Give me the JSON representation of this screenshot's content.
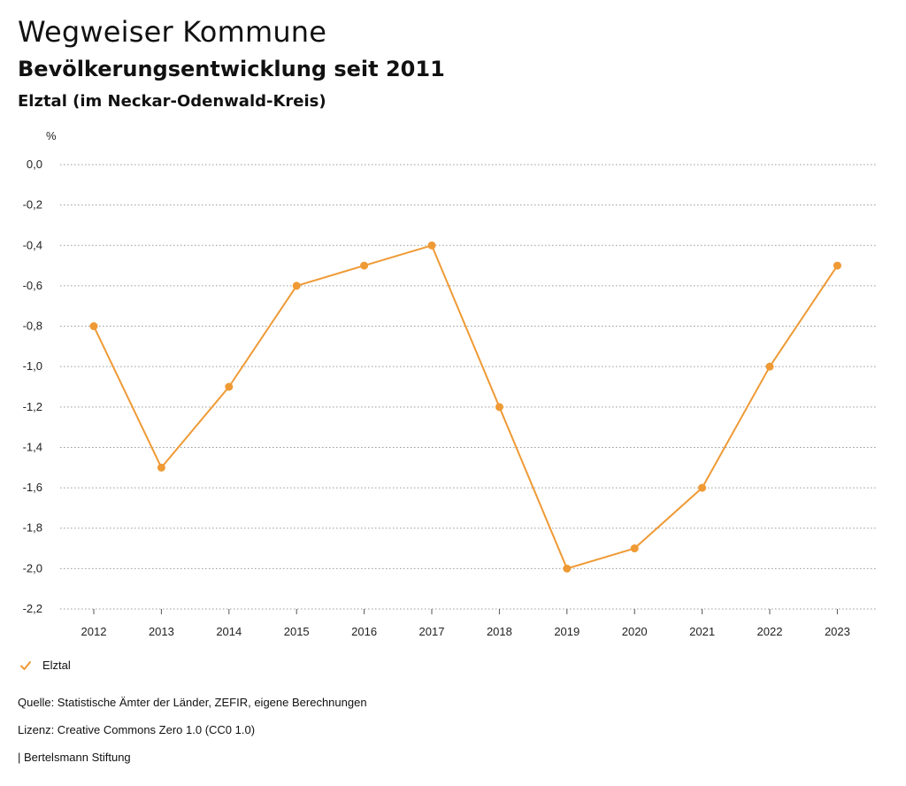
{
  "header": {
    "title": "Wegweiser Kommune",
    "subtitle": "Bevölkerungsentwicklung seit 2011",
    "region": "Elztal (im Neckar-Odenwald-Kreis)"
  },
  "chart_data": {
    "type": "line",
    "unit_label": "%",
    "x": [
      "2012",
      "2013",
      "2014",
      "2015",
      "2016",
      "2017",
      "2018",
      "2019",
      "2020",
      "2021",
      "2022",
      "2023"
    ],
    "series": [
      {
        "name": "Elztal",
        "color": "#ef9a35",
        "values": [
          -0.8,
          -1.5,
          -1.1,
          -0.6,
          -0.5,
          -0.4,
          -1.2,
          -2.0,
          -1.9,
          -1.6,
          -1.0,
          -0.5
        ]
      }
    ],
    "ylim": [
      -2.2,
      0.0
    ],
    "yticks": [
      "0,0",
      "-0,2",
      "-0,4",
      "-0,6",
      "-0,8",
      "-1,0",
      "-1,2",
      "-1,4",
      "-1,6",
      "-1,8",
      "-2,0",
      "-2,2"
    ],
    "grid": true,
    "legend_position": "bottom-left"
  },
  "legend": {
    "label": "Elztal",
    "icon": "check-icon",
    "color": "#ef9a35"
  },
  "footer": {
    "source": "Quelle: Statistische Ämter der Länder, ZEFIR, eigene Berechnungen",
    "license": "Lizenz: Creative Commons Zero 1.0 (CC0 1.0)",
    "publisher": "| Bertelsmann Stiftung"
  }
}
